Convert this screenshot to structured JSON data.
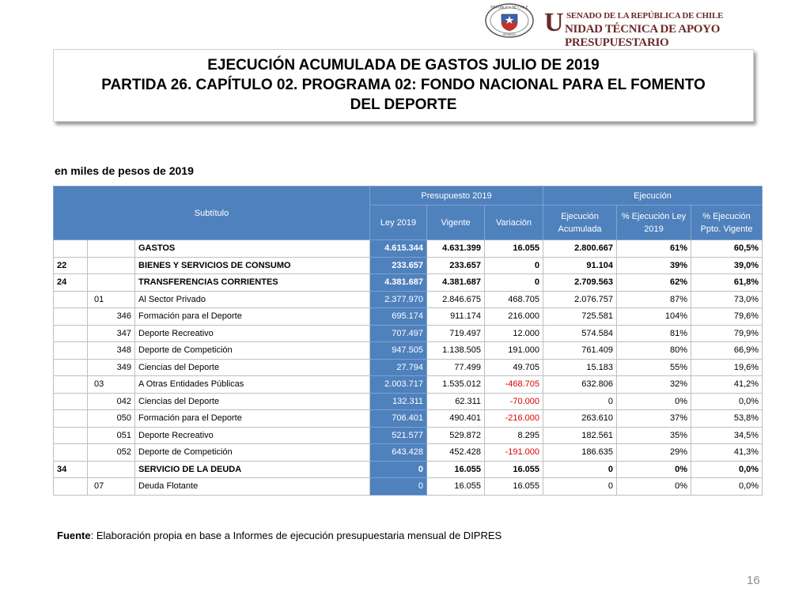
{
  "header": {
    "seal_top": "REPÚBLICA DE CHILE",
    "seal_bottom": "SENADO",
    "org": "SENADO DE LA REPÚBLICA DE CHILE",
    "unit_initial": "U",
    "unit_rest": "NIDAD TÉCNICA DE APOYO PRESUPUESTARIO"
  },
  "title": {
    "line1": "EJECUCIÓN ACUMULADA DE GASTOS JULIO DE 2019",
    "line2": "PARTIDA 26. CAPÍTULO 02. PROGRAMA 02:  FONDO NACIONAL PARA EL FOMENTO DEL DEPORTE"
  },
  "subtitle": "en miles de pesos de 2019",
  "table": {
    "header": {
      "subtitulo": "Subtítulo",
      "presupuesto": "Presupuesto 2019",
      "ejecucion": "Ejecución",
      "ley": "Ley 2019",
      "vigente": "Vigente",
      "variacion": "Variación",
      "ejec_acum": "Ejecución Acumulada",
      "pct_ley": "% Ejecución Ley 2019",
      "pct_vig": "% Ejecución Ppto. Vigente"
    },
    "rows": [
      {
        "bold": true,
        "name": "GASTOS",
        "ley": "4.615.344",
        "vigente": "4.631.399",
        "variacion": "16.055",
        "ejec": "2.800.667",
        "pct_ley": "61%",
        "pct_vig": "60,5%"
      },
      {
        "bold": true,
        "sub": "22",
        "name": "BIENES Y SERVICIOS DE CONSUMO",
        "ley": "233.657",
        "vigente": "233.657",
        "variacion": "0",
        "ejec": "91.104",
        "pct_ley": "39%",
        "pct_vig": "39,0%"
      },
      {
        "bold": true,
        "sub": "24",
        "name": "TRANSFERENCIAS CORRIENTES",
        "ley": "4.381.687",
        "vigente": "4.381.687",
        "variacion": "0",
        "ejec": "2.709.563",
        "pct_ley": "62%",
        "pct_vig": "61,8%"
      },
      {
        "item": "01",
        "name": "Al Sector Privado",
        "ley": "2.377.970",
        "vigente": "2.846.675",
        "variacion": "468.705",
        "ejec": "2.076.757",
        "pct_ley": "87%",
        "pct_vig": "73,0%"
      },
      {
        "asig": "346",
        "name": "Formación para el Deporte",
        "ley": "695.174",
        "vigente": "911.174",
        "variacion": "216.000",
        "ejec": "725.581",
        "pct_ley": "104%",
        "pct_vig": "79,6%"
      },
      {
        "asig": "347",
        "name": "Deporte Recreativo",
        "ley": "707.497",
        "vigente": "719.497",
        "variacion": "12.000",
        "ejec": "574.584",
        "pct_ley": "81%",
        "pct_vig": "79,9%"
      },
      {
        "asig": "348",
        "name": "Deporte de Competición",
        "ley": "947.505",
        "vigente": "1.138.505",
        "variacion": "191.000",
        "ejec": "761.409",
        "pct_ley": "80%",
        "pct_vig": "66,9%"
      },
      {
        "asig": "349",
        "name": "Ciencias del Deporte",
        "ley": "27.794",
        "vigente": "77.499",
        "variacion": "49.705",
        "ejec": "15.183",
        "pct_ley": "55%",
        "pct_vig": "19,6%"
      },
      {
        "item": "03",
        "name": "A Otras Entidades Públicas",
        "ley": "2.003.717",
        "vigente": "1.535.012",
        "variacion": "-468.705",
        "ejec": "632.806",
        "pct_ley": "32%",
        "pct_vig": "41,2%"
      },
      {
        "asig": "042",
        "name": "Ciencias del Deporte",
        "ley": "132.311",
        "vigente": "62.311",
        "variacion": "-70.000",
        "ejec": "0",
        "pct_ley": "0%",
        "pct_vig": "0,0%"
      },
      {
        "asig": "050",
        "name": "Formación para el Deporte",
        "ley": "706.401",
        "vigente": "490.401",
        "variacion": "-216.000",
        "ejec": "263.610",
        "pct_ley": "37%",
        "pct_vig": "53,8%"
      },
      {
        "asig": "051",
        "name": "Deporte Recreativo",
        "ley": "521.577",
        "vigente": "529.872",
        "variacion": "8.295",
        "ejec": "182.561",
        "pct_ley": "35%",
        "pct_vig": "34,5%"
      },
      {
        "asig": "052",
        "name": "Deporte de Competición",
        "ley": "643.428",
        "vigente": "452.428",
        "variacion": "-191.000",
        "ejec": "186.635",
        "pct_ley": "29%",
        "pct_vig": "41,3%"
      },
      {
        "bold": true,
        "sub": "34",
        "name": "SERVICIO DE LA DEUDA",
        "ley": "0",
        "vigente": "16.055",
        "variacion": "16.055",
        "ejec": "0",
        "pct_ley": "0%",
        "pct_vig": "0,0%"
      },
      {
        "item": "07",
        "name": "Deuda Flotante",
        "ley": "0",
        "vigente": "16.055",
        "variacion": "16.055",
        "ejec": "0",
        "pct_ley": "0%",
        "pct_vig": "0,0%"
      }
    ]
  },
  "source": {
    "label": "Fuente",
    "text": ": Elaboración propia en base  a Informes de ejecución presupuestaria mensual de DIPRES"
  },
  "page_number": "16"
}
